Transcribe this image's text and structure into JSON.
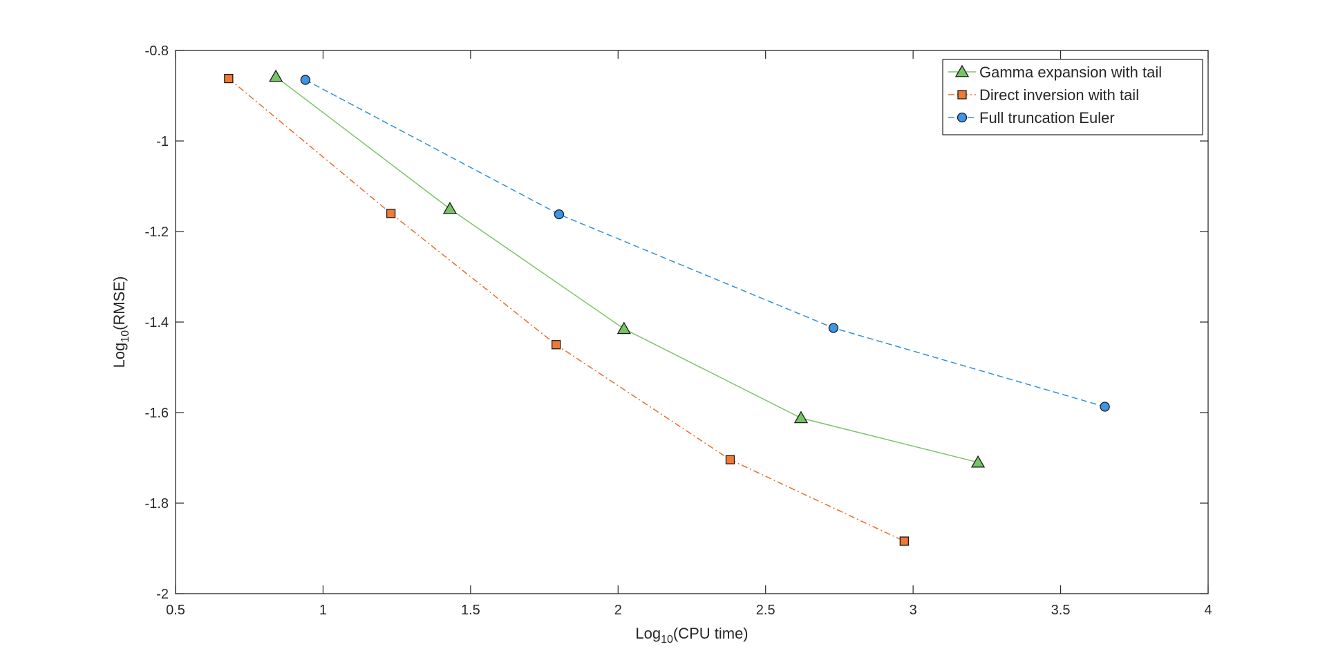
{
  "chart_data": {
    "type": "line",
    "xlabel": {
      "base": "Log",
      "sub": "10",
      "rest": "(CPU time)"
    },
    "ylabel": {
      "base": "Log",
      "sub": "10",
      "rest": "(RMSE)"
    },
    "xlim": [
      0.5,
      4
    ],
    "ylim": [
      -2,
      -0.8
    ],
    "xticks": [
      0.5,
      1,
      1.5,
      2,
      2.5,
      3,
      3.5,
      4
    ],
    "xtick_labels": [
      "0.5",
      "1",
      "1.5",
      "2",
      "2.5",
      "3",
      "3.5",
      "4"
    ],
    "yticks": [
      -2,
      -1.8,
      -1.6,
      -1.4,
      -1.2,
      -1,
      -0.8
    ],
    "ytick_labels": [
      "-2",
      "-1.8",
      "-1.6",
      "-1.4",
      "-1.2",
      "-1",
      "-0.8"
    ],
    "grid": false,
    "legend_position": "top-right",
    "series": [
      {
        "name": "Gamma expansion with tail",
        "color": "#7cc46a",
        "marker": "triangle",
        "marker_fill": "#77c464",
        "line_style": "solid",
        "x": [
          0.84,
          1.43,
          2.02,
          2.62,
          3.22
        ],
        "y": [
          -0.858,
          -1.15,
          -1.415,
          -1.612,
          -1.71
        ]
      },
      {
        "name": "Direct inversion with tail",
        "color": "#ee6a28",
        "marker": "square",
        "marker_fill": "#f07a34",
        "line_style": "dashdot",
        "x": [
          0.68,
          1.23,
          1.79,
          2.38,
          2.97
        ],
        "y": [
          -0.862,
          -1.16,
          -1.45,
          -1.704,
          -1.884
        ]
      },
      {
        "name": "Full truncation Euler",
        "color": "#2e8fe0",
        "marker": "circle",
        "marker_fill": "#3d95e8",
        "line_style": "dashed",
        "x": [
          0.94,
          1.8,
          2.73,
          3.65
        ],
        "y": [
          -0.865,
          -1.162,
          -1.413,
          -1.587
        ]
      }
    ]
  }
}
